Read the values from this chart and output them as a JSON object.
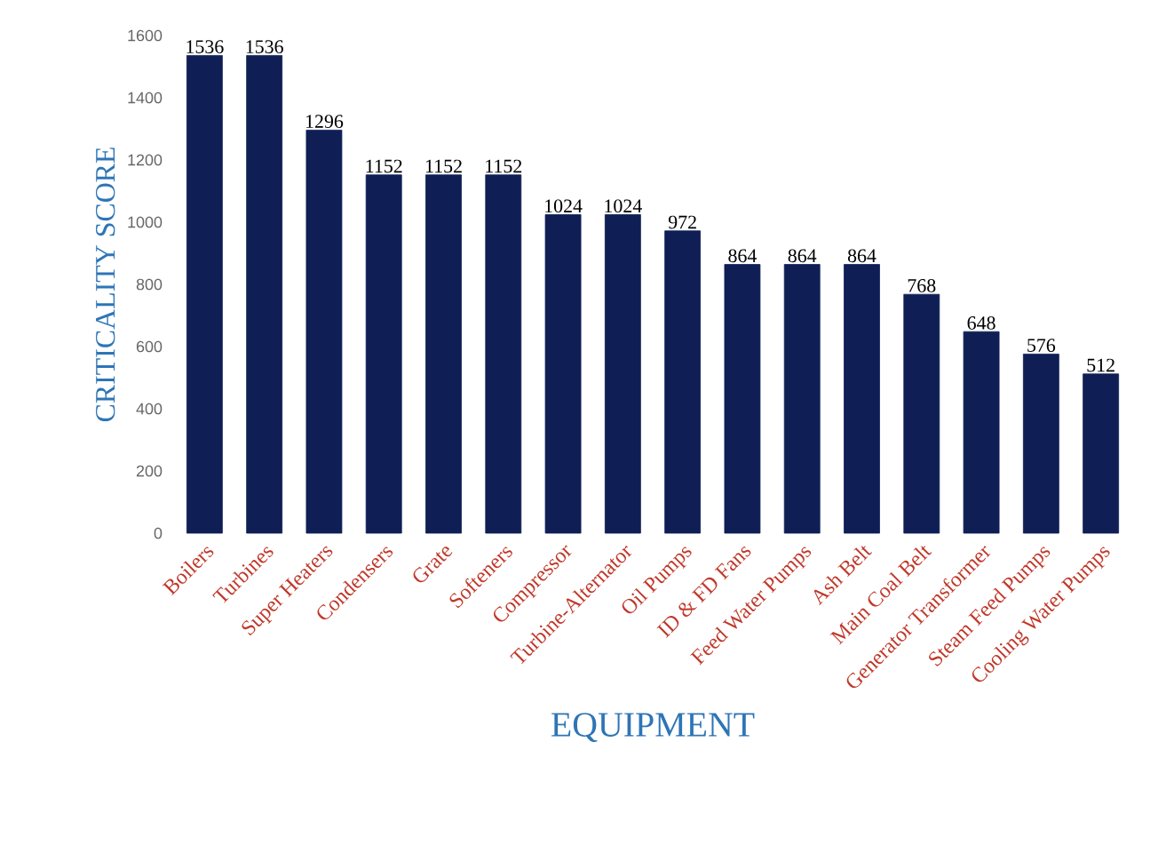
{
  "chart_data": {
    "type": "bar",
    "xlabel": "EQUIPMENT",
    "ylabel": "CRITICALITY SCORE",
    "categories": [
      "Boilers",
      "Turbines",
      "Super Heaters",
      "Condensers",
      "Grate",
      "Softeners",
      "Compressor",
      "Turbine-Alternator",
      "Oil Pumps",
      "ID & FD Fans",
      "Feed Water Pumps",
      "Ash Belt",
      "Main Coal Belt",
      "Generator Transformer",
      "Steam Feed Pumps",
      "Cooling Water Pumps"
    ],
    "values": [
      1536,
      1536,
      1296,
      1152,
      1152,
      1152,
      1024,
      1024,
      972,
      864,
      864,
      864,
      768,
      648,
      576,
      512
    ],
    "color": "#0f1f55",
    "ylim": [
      0,
      1600
    ],
    "yticks": [
      0,
      200,
      400,
      600,
      800,
      1000,
      1200,
      1400,
      1600
    ],
    "data_labels": true
  }
}
